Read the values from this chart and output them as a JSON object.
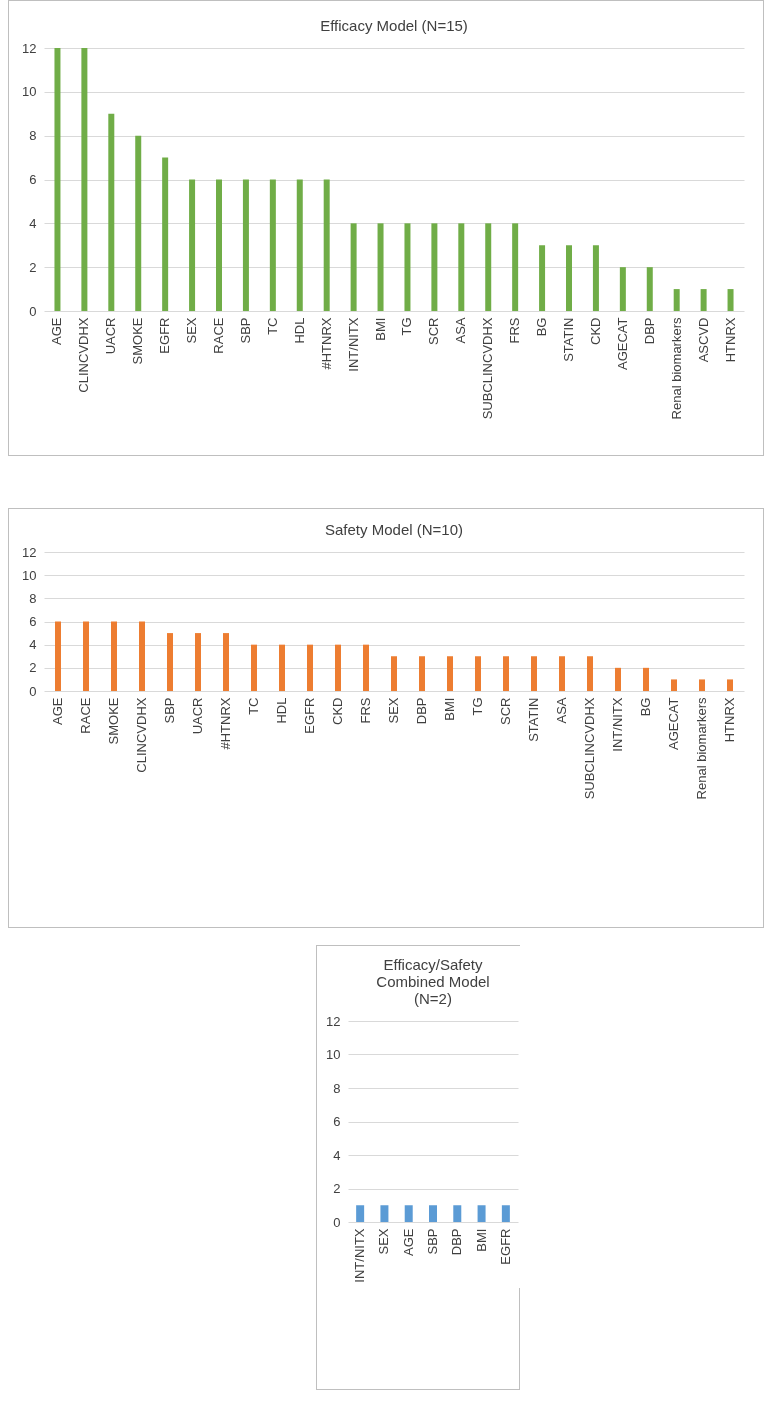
{
  "chart_data": [
    {
      "type": "bar",
      "title": "Efficacy Model (N=15)",
      "categories": [
        "AGE",
        "CLINCVDHX",
        "UACR",
        "SMOKE",
        "EGFR",
        "SEX",
        "RACE",
        "SBP",
        "TC",
        "HDL",
        "#HTNRX",
        "INT/NITX",
        "BMI",
        "TG",
        "SCR",
        "ASA",
        "SUBCLINCVDHX",
        "FRS",
        "BG",
        "STATIN",
        "CKD",
        "AGECAT",
        "DBP",
        "Renal biomarkers",
        "ASCVD",
        "HTNRX"
      ],
      "values": [
        12,
        12,
        9,
        8,
        7,
        6,
        6,
        6,
        6,
        6,
        6,
        4,
        4,
        4,
        4,
        4,
        4,
        4,
        3,
        3,
        3,
        2,
        2,
        1,
        1,
        1
      ],
      "color": "#70ad47",
      "ylim": [
        0,
        12
      ],
      "yticks": [
        0,
        2,
        4,
        6,
        8,
        10,
        12
      ],
      "grid": "y"
    },
    {
      "type": "bar",
      "title": "Safety Model (N=10)",
      "categories": [
        "AGE",
        "RACE",
        "SMOKE",
        "CLINCVDHX",
        "SBP",
        "UACR",
        "#HTNRX",
        "TC",
        "HDL",
        "EGFR",
        "CKD",
        "FRS",
        "SEX",
        "DBP",
        "BMI",
        "TG",
        "SCR",
        "STATIN",
        "ASA",
        "SUBCLINCVDHX",
        "INT/NITX",
        "BG",
        "AGECAT",
        "Renal biomarkers",
        "HTNRX"
      ],
      "values": [
        6,
        6,
        6,
        6,
        5,
        5,
        5,
        4,
        4,
        4,
        4,
        4,
        3,
        3,
        3,
        3,
        3,
        3,
        3,
        3,
        2,
        2,
        1,
        1,
        1
      ],
      "color": "#ed7d31",
      "ylim": [
        0,
        12
      ],
      "yticks": [
        0,
        2,
        4,
        6,
        8,
        10,
        12
      ],
      "grid": "y"
    },
    {
      "type": "bar",
      "title": "Efficacy/Safety Combined Model (N=2)",
      "categories": [
        "INT/NITX",
        "SEX",
        "AGE",
        "SBP",
        "DBP",
        "BMI",
        "EGFR"
      ],
      "values": [
        1,
        1,
        1,
        1,
        1,
        1,
        1
      ],
      "color": "#5b9bd5",
      "ylim": [
        0,
        12
      ],
      "yticks": [
        0,
        2,
        4,
        6,
        8,
        10,
        12
      ],
      "grid": "y"
    }
  ]
}
